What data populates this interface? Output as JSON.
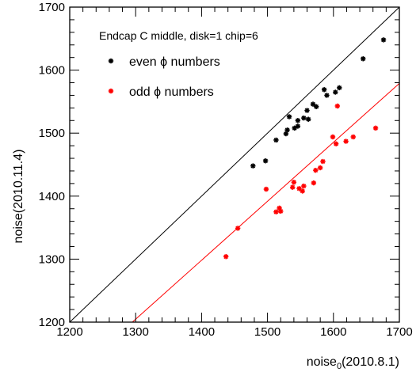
{
  "chart_data": {
    "type": "scatter",
    "title": "",
    "xlabel": {
      "base": "noise",
      "sub": "0",
      "suffix": "(2010.8.1)"
    },
    "ylabel": "noise(2010.11.4)",
    "xlim": [
      1200,
      1700
    ],
    "ylim": [
      1200,
      1700
    ],
    "x_ticks": [
      1200,
      1300,
      1400,
      1500,
      1600,
      1700
    ],
    "y_ticks": [
      1200,
      1300,
      1400,
      1500,
      1600,
      1700
    ],
    "grid": false,
    "legend_placement": "top-left",
    "annotation": "Endcap C middle, disk=1 chip=6",
    "series": [
      {
        "name": "even ϕ numbers",
        "color": "#000000",
        "marker": "star",
        "points": [
          [
            1478,
            1448
          ],
          [
            1497,
            1456
          ],
          [
            1513,
            1489
          ],
          [
            1528,
            1499
          ],
          [
            1530,
            1505
          ],
          [
            1533,
            1526
          ],
          [
            1541,
            1508
          ],
          [
            1546,
            1511
          ],
          [
            1546,
            1520
          ],
          [
            1555,
            1524
          ],
          [
            1560,
            1536
          ],
          [
            1562,
            1522
          ],
          [
            1569,
            1546
          ],
          [
            1574,
            1542
          ],
          [
            1586,
            1569
          ],
          [
            1590,
            1560
          ],
          [
            1603,
            1565
          ],
          [
            1609,
            1572
          ],
          [
            1645,
            1618
          ],
          [
            1676,
            1648
          ]
        ]
      },
      {
        "name": "odd ϕ numbers",
        "color": "#ff0000",
        "marker": "star",
        "points": [
          [
            1437,
            1304
          ],
          [
            1455,
            1349
          ],
          [
            1498,
            1411
          ],
          [
            1513,
            1375
          ],
          [
            1518,
            1381
          ],
          [
            1520,
            1376
          ],
          [
            1538,
            1414
          ],
          [
            1540,
            1422
          ],
          [
            1548,
            1412
          ],
          [
            1553,
            1408
          ],
          [
            1555,
            1416
          ],
          [
            1570,
            1421
          ],
          [
            1573,
            1441
          ],
          [
            1580,
            1445
          ],
          [
            1584,
            1455
          ],
          [
            1599,
            1494
          ],
          [
            1604,
            1483
          ],
          [
            1606,
            1543
          ],
          [
            1619,
            1487
          ],
          [
            1630,
            1494
          ],
          [
            1664,
            1508
          ]
        ]
      }
    ],
    "lines": [
      {
        "color": "#000000",
        "from": [
          1200,
          1200
        ],
        "to": [
          1700,
          1700
        ]
      },
      {
        "color": "#ff0000",
        "from": [
          1295,
          1200
        ],
        "to": [
          1700,
          1579
        ]
      }
    ]
  }
}
